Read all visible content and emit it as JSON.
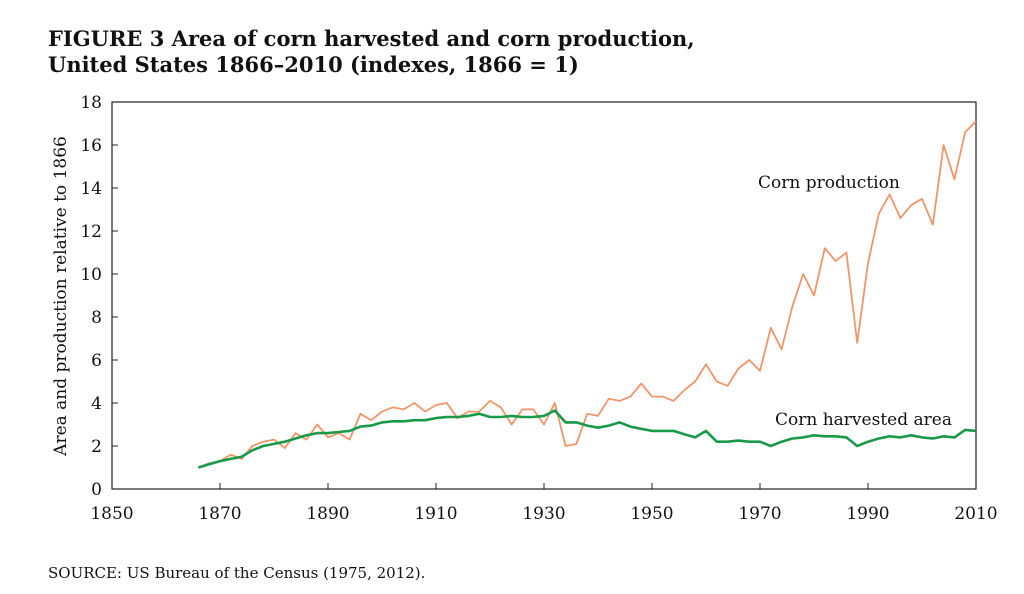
{
  "chart_data": {
    "type": "line",
    "title": [
      "FIGURE 3   Area of corn harvested and corn production,",
      "United States 1866–2010 (indexes, 1866 = 1)"
    ],
    "y_label": "Area and production relative to 1866",
    "source": "SOURCE: US Bureau of the Census (1975, 2012).",
    "x": [
      1866,
      1868,
      1870,
      1872,
      1874,
      1876,
      1878,
      1880,
      1882,
      1884,
      1886,
      1888,
      1890,
      1892,
      1894,
      1896,
      1898,
      1900,
      1902,
      1904,
      1906,
      1908,
      1910,
      1912,
      1914,
      1916,
      1918,
      1920,
      1922,
      1924,
      1926,
      1928,
      1930,
      1932,
      1934,
      1936,
      1938,
      1940,
      1942,
      1944,
      1946,
      1948,
      1950,
      1952,
      1954,
      1956,
      1958,
      1960,
      1962,
      1964,
      1966,
      1968,
      1970,
      1972,
      1974,
      1976,
      1978,
      1980,
      1982,
      1984,
      1986,
      1988,
      1990,
      1992,
      1994,
      1996,
      1998,
      2000,
      2002,
      2004,
      2006,
      2008,
      2010
    ],
    "series": [
      {
        "name": "Corn production",
        "color": "#f0956a",
        "values": [
          1.0,
          1.2,
          1.3,
          1.6,
          1.4,
          2.0,
          2.2,
          2.3,
          1.9,
          2.6,
          2.3,
          3.0,
          2.4,
          2.6,
          2.3,
          3.5,
          3.2,
          3.6,
          3.8,
          3.7,
          4.0,
          3.6,
          3.9,
          4.0,
          3.3,
          3.6,
          3.6,
          4.1,
          3.8,
          3.0,
          3.7,
          3.7,
          3.0,
          4.0,
          2.0,
          2.1,
          3.5,
          3.4,
          4.2,
          4.1,
          4.3,
          4.9,
          4.3,
          4.3,
          4.1,
          4.6,
          5.0,
          5.8,
          5.0,
          4.8,
          5.6,
          6.0,
          5.5,
          7.5,
          6.5,
          8.5,
          10.0,
          9.0,
          11.2,
          10.6,
          11.0,
          6.8,
          10.5,
          12.8,
          13.7,
          12.6,
          13.2,
          13.5,
          12.3,
          16.0,
          14.4,
          16.6,
          17.1
        ]
      },
      {
        "name": "Corn harvested area",
        "color": "#1a9a48",
        "values": [
          1.0,
          1.15,
          1.3,
          1.4,
          1.5,
          1.8,
          2.0,
          2.1,
          2.2,
          2.35,
          2.5,
          2.6,
          2.6,
          2.65,
          2.7,
          2.9,
          2.95,
          3.1,
          3.15,
          3.15,
          3.2,
          3.2,
          3.3,
          3.35,
          3.35,
          3.4,
          3.5,
          3.35,
          3.35,
          3.4,
          3.35,
          3.35,
          3.4,
          3.65,
          3.1,
          3.1,
          2.95,
          2.85,
          2.95,
          3.1,
          2.9,
          2.8,
          2.7,
          2.7,
          2.7,
          2.55,
          2.4,
          2.7,
          2.2,
          2.2,
          2.25,
          2.2,
          2.2,
          2.0,
          2.2,
          2.35,
          2.4,
          2.5,
          2.45,
          2.45,
          2.4,
          2.0,
          2.2,
          2.35,
          2.45,
          2.4,
          2.5,
          2.4,
          2.35,
          2.45,
          2.4,
          2.75,
          2.7
        ]
      }
    ],
    "xlim": [
      1850,
      2010
    ],
    "xticks": [
      1850,
      1870,
      1890,
      1910,
      1930,
      1950,
      1970,
      1990,
      2010
    ],
    "ylim": [
      0,
      18
    ],
    "yticks": [
      0,
      2,
      4,
      6,
      8,
      10,
      12,
      14,
      16,
      18
    ],
    "grid": false
  }
}
